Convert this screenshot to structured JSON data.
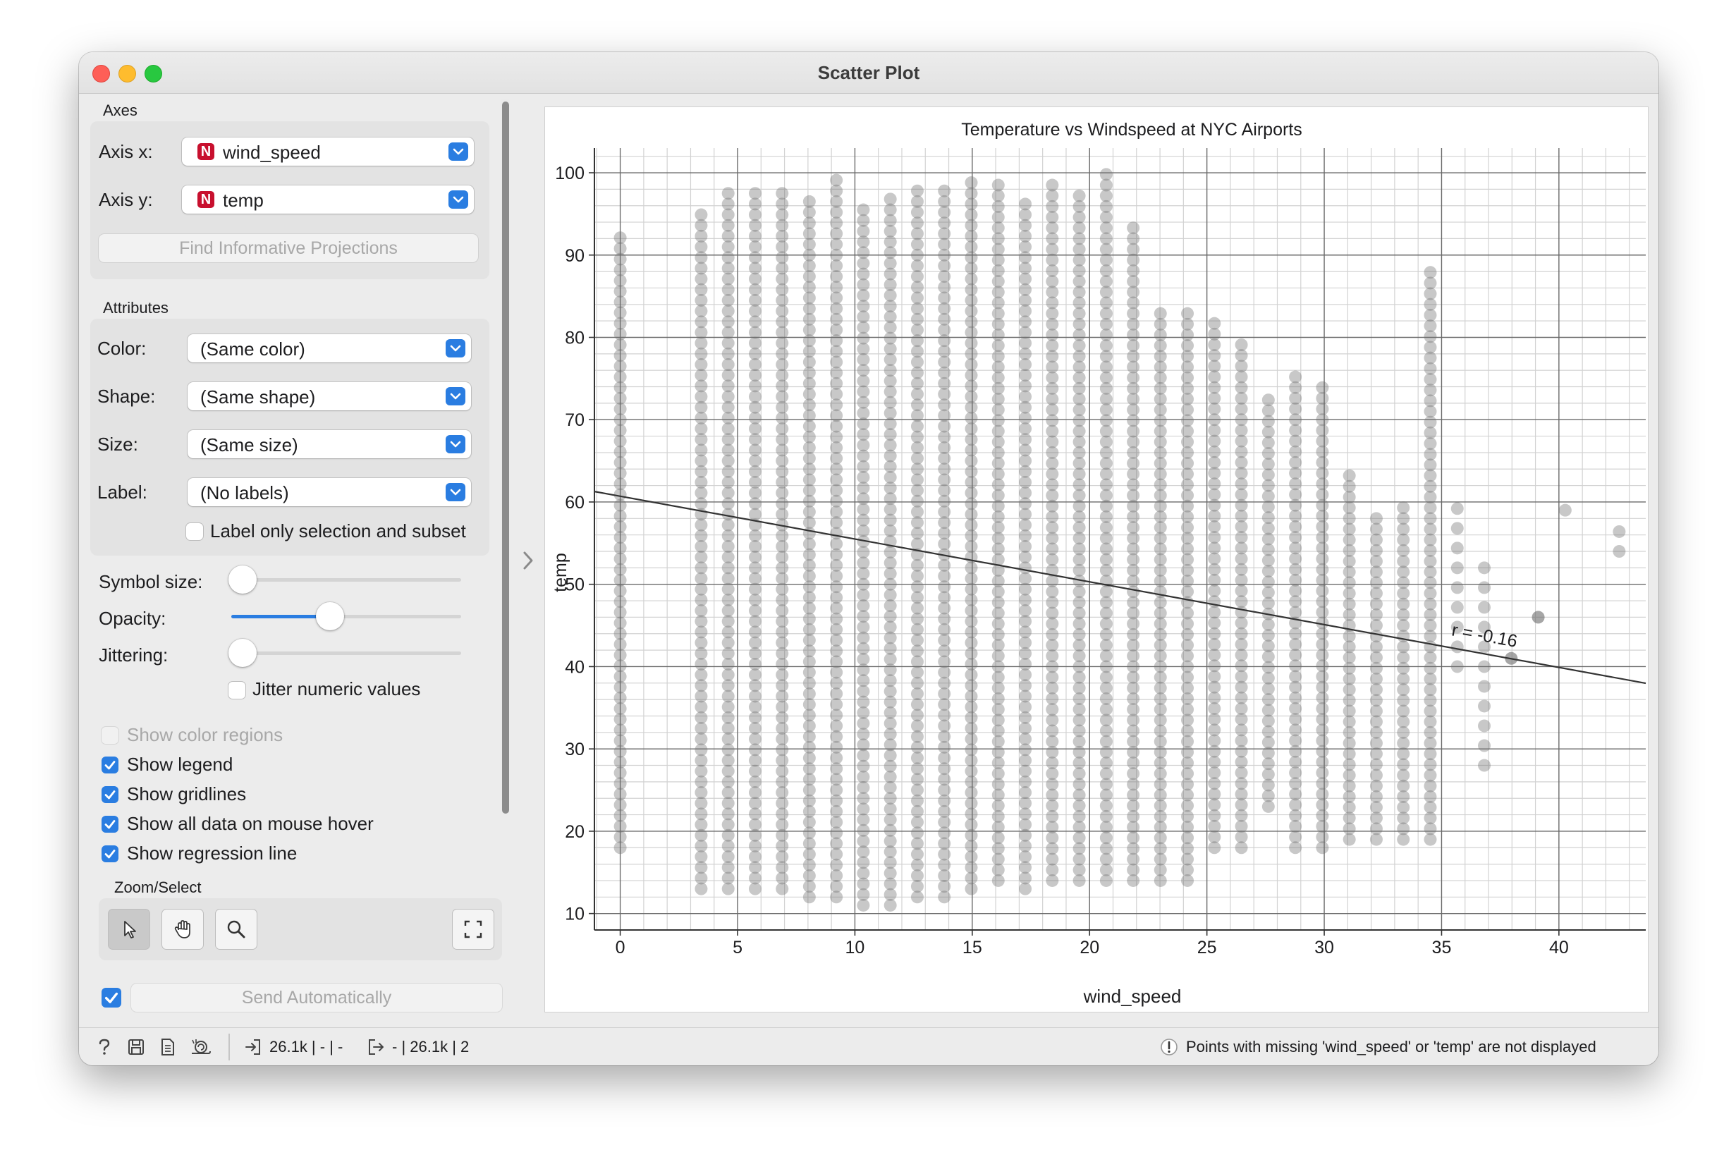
{
  "window": {
    "title": "Scatter Plot"
  },
  "axes": {
    "section_label": "Axes",
    "x_label": "Axis x:",
    "x_value": "wind_speed",
    "y_label": "Axis y:",
    "y_value": "temp",
    "var_badge": "N",
    "find_button": "Find Informative Projections"
  },
  "attributes": {
    "section_label": "Attributes",
    "color_label": "Color:",
    "color_value": "(Same color)",
    "shape_label": "Shape:",
    "shape_value": "(Same shape)",
    "size_label": "Size:",
    "size_value": "(Same size)",
    "label_label": "Label:",
    "label_value": "(No labels)",
    "label_only_selection": "Label only selection and subset"
  },
  "sliders": {
    "symbol_size_label": "Symbol size:",
    "symbol_size_level": 0.0,
    "opacity_label": "Opacity:",
    "opacity_level": 0.43,
    "jittering_label": "Jittering:",
    "jittering_level": 0.0,
    "jitter_numeric": "Jitter numeric values"
  },
  "options": {
    "show_color_regions": "Show color regions",
    "show_legend": "Show legend",
    "show_gridlines": "Show gridlines",
    "show_all_data": "Show all data on mouse hover",
    "show_regression": "Show regression line"
  },
  "zoom": {
    "section_label": "Zoom/Select"
  },
  "send": {
    "label": "Send Automatically",
    "checked": true
  },
  "status": {
    "input_summary": "26.1k | - | -",
    "output_summary": "- | 26.1k | 2",
    "message": "Points with missing 'wind_speed' or 'temp' are not displayed"
  },
  "colors": {
    "accent": "#2a7de1",
    "point": "#6e6e6e",
    "badge": "#c8102e"
  },
  "icons": [
    "help-icon",
    "save-icon",
    "report-icon",
    "snail-icon",
    "input-icon",
    "output-icon",
    "warning-icon",
    "arrow-cursor-icon",
    "hand-icon",
    "magnifier-icon",
    "fit-screen-icon",
    "chevron-right-icon"
  ],
  "chart_data": {
    "type": "scatter",
    "title": "Temperature vs Windspeed at NYC Airports",
    "xlabel": "wind_speed",
    "ylabel": "temp",
    "xlim": [
      -1.1,
      43.7
    ],
    "ylim": [
      8,
      103
    ],
    "x_ticks": [
      0,
      5,
      10,
      15,
      20,
      25,
      30,
      35,
      40
    ],
    "y_ticks": [
      10,
      20,
      30,
      40,
      50,
      60,
      70,
      80,
      90,
      100
    ],
    "grid": true,
    "regression": {
      "slope": -0.52,
      "intercept": 60.7,
      "label": "r = -0.16"
    },
    "columns": [
      {
        "x": 0,
        "ymin": 18,
        "ymax": 93
      },
      {
        "x": 3.45,
        "ymin": 13,
        "ymax": 95
      },
      {
        "x": 4.6,
        "ymin": 13,
        "ymax": 98
      },
      {
        "x": 5.75,
        "ymin": 13,
        "ymax": 98
      },
      {
        "x": 6.9,
        "ymin": 13,
        "ymax": 98
      },
      {
        "x": 8.06,
        "ymin": 12,
        "ymax": 97
      },
      {
        "x": 9.21,
        "ymin": 12,
        "ymax": 100
      },
      {
        "x": 10.36,
        "ymin": 11,
        "ymax": 96
      },
      {
        "x": 11.51,
        "ymin": 11,
        "ymax": 97
      },
      {
        "x": 12.66,
        "ymin": 12,
        "ymax": 99
      },
      {
        "x": 13.81,
        "ymin": 12,
        "ymax": 98
      },
      {
        "x": 14.96,
        "ymin": 13,
        "ymax": 99
      },
      {
        "x": 16.11,
        "ymin": 14,
        "ymax": 99
      },
      {
        "x": 17.26,
        "ymin": 13,
        "ymax": 97
      },
      {
        "x": 18.41,
        "ymin": 14,
        "ymax": 99
      },
      {
        "x": 19.56,
        "ymin": 14,
        "ymax": 98
      },
      {
        "x": 20.71,
        "ymin": 14,
        "ymax": 100
      },
      {
        "x": 21.86,
        "ymin": 14,
        "ymax": 94
      },
      {
        "x": 23.02,
        "ymin": 14,
        "ymax": 83
      },
      {
        "x": 24.17,
        "ymin": 14,
        "ymax": 84
      },
      {
        "x": 25.32,
        "ymin": 18,
        "ymax": 82
      },
      {
        "x": 26.47,
        "ymin": 18,
        "ymax": 80
      },
      {
        "x": 27.62,
        "ymin": 23,
        "ymax": 73
      },
      {
        "x": 28.77,
        "ymin": 18,
        "ymax": 76
      },
      {
        "x": 29.92,
        "ymin": 18,
        "ymax": 74
      },
      {
        "x": 31.07,
        "ymin": 19,
        "ymax": 64
      },
      {
        "x": 32.22,
        "ymin": 19,
        "ymax": 59
      },
      {
        "x": 33.37,
        "ymin": 19,
        "ymax": 60
      },
      {
        "x": 34.52,
        "ymin": 19,
        "ymax": 89
      },
      {
        "x": 35.67,
        "ymin": 40,
        "ymax": 61
      },
      {
        "x": 36.82,
        "ymin": 28,
        "ymax": 53
      },
      {
        "x": 37.97,
        "ymin": 41,
        "ymax": 41
      },
      {
        "x": 39.12,
        "ymin": 46,
        "ymax": 46
      },
      {
        "x": 40.27,
        "ymin": 59,
        "ymax": 61
      },
      {
        "x": 42.57,
        "ymin": 54,
        "ymax": 57
      }
    ]
  }
}
